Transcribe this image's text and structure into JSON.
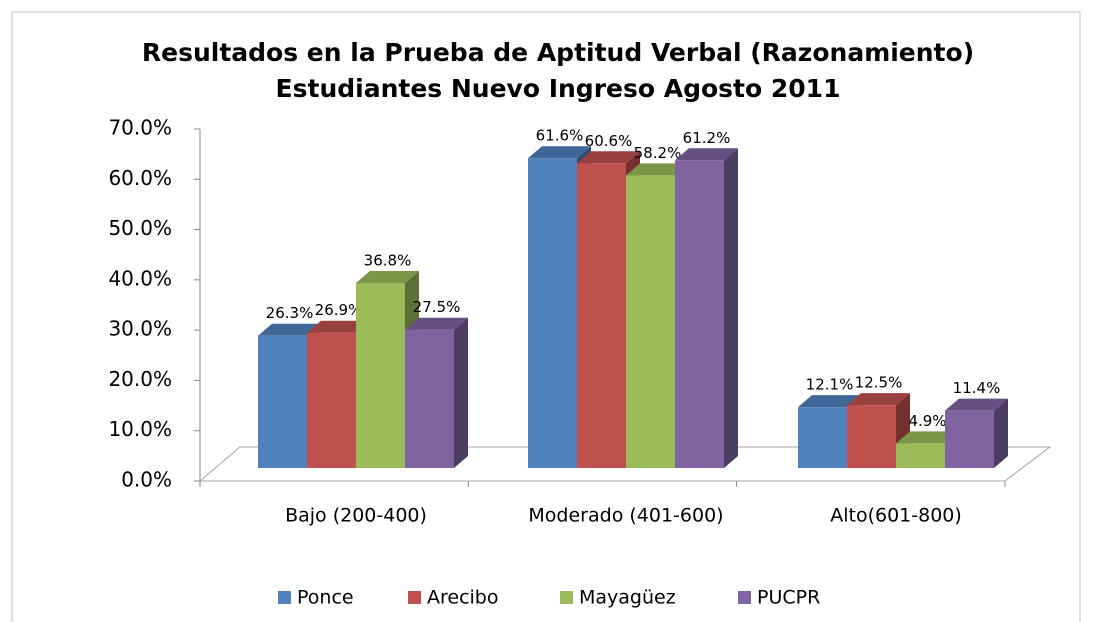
{
  "chart_data": {
    "type": "bar3d",
    "title": "Resultados en la Prueba de Aptitud Verbal (Razonamiento)",
    "subtitle": "Estudiantes Nuevo Ingreso Agosto 2011",
    "categories": [
      "Bajo (200-400)",
      "Moderado (401-600)",
      "Alto(601-800)"
    ],
    "series": [
      {
        "name": "Ponce",
        "color": "#4f81bd",
        "values": [
          26.3,
          61.6,
          12.1
        ],
        "value_labels": [
          "26.3%",
          "61.6%",
          "12.1%"
        ]
      },
      {
        "name": "Arecibo",
        "color": "#c0504d",
        "values": [
          26.9,
          60.6,
          12.5
        ],
        "value_labels": [
          "26.9%",
          "60.6%",
          "12.5%"
        ]
      },
      {
        "name": "Mayagüez",
        "color": "#9bbb59",
        "values": [
          36.8,
          58.2,
          4.9
        ],
        "value_labels": [
          "36.8%",
          "58.2%",
          "4.9%"
        ]
      },
      {
        "name": "PUCPR",
        "color": "#8064a2",
        "values": [
          27.5,
          61.2,
          11.4
        ],
        "value_labels": [
          "27.5%",
          "61.2%",
          "11.4%"
        ]
      }
    ],
    "ylim": [
      0,
      70
    ],
    "yticks": [
      {
        "value": 0,
        "label": "0.0%"
      },
      {
        "value": 10,
        "label": "10.0%"
      },
      {
        "value": 20,
        "label": "20.0%"
      },
      {
        "value": 30,
        "label": "30.0%"
      },
      {
        "value": 40,
        "label": "40.0%"
      },
      {
        "value": 50,
        "label": "50.0%"
      },
      {
        "value": 60,
        "label": "60.0%"
      },
      {
        "value": 70,
        "label": "70.0%"
      }
    ],
    "legend": "bottom"
  }
}
